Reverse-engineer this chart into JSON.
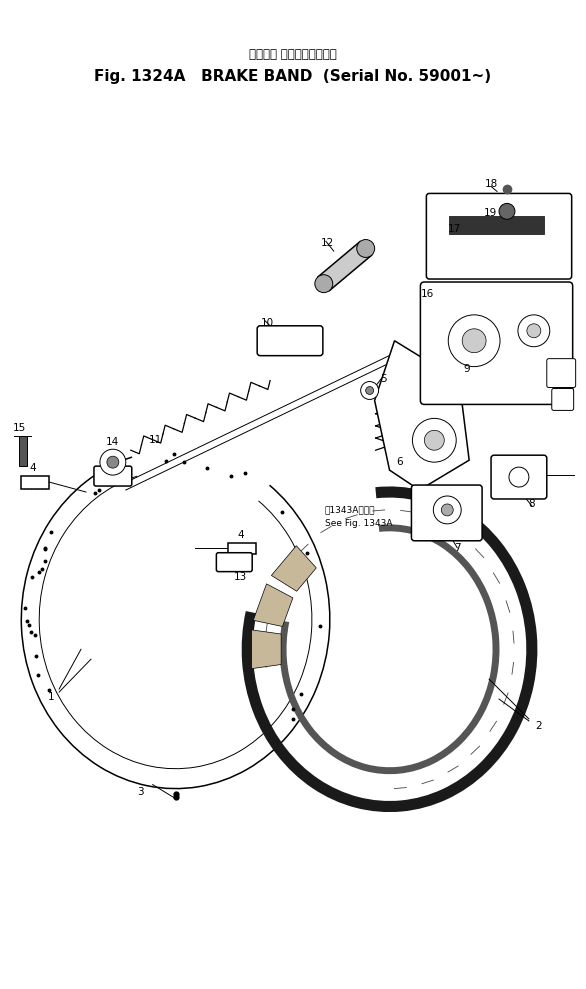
{
  "title_japanese": "ブレーキ バンド（適用号機",
  "title_english": "Fig. 1324A   BRAKE BAND",
  "title_serial": "(Serial No. 59001~)",
  "bg_color": "#ffffff",
  "line_color": "#000000",
  "fig_width": 5.86,
  "fig_height": 9.89,
  "dpi": 100,
  "annotation_japanese": "第1343A図参照",
  "annotation_english": "See Fig. 1343A"
}
